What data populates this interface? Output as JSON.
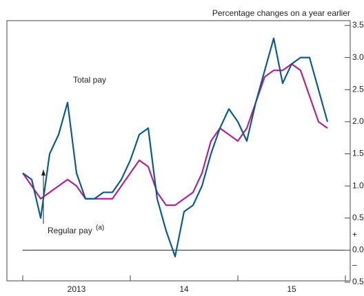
{
  "chart_data": {
    "type": "line",
    "subtitle": "Percentage changes on a year earlier",
    "categories": [
      null,
      null,
      null,
      null,
      null,
      null,
      "2013",
      null,
      null,
      null,
      null,
      null,
      null,
      null,
      null,
      null,
      null,
      null,
      "14",
      null,
      null,
      null,
      null,
      null,
      null,
      null,
      null,
      null,
      null,
      null,
      "15",
      null,
      null,
      null,
      null
    ],
    "series": [
      {
        "name": "Total pay",
        "color": "#0b5a8c",
        "values": [
          1.2,
          1.1,
          0.5,
          1.5,
          1.8,
          2.3,
          1.2,
          0.8,
          0.8,
          0.9,
          0.9,
          1.1,
          1.4,
          1.8,
          1.9,
          0.8,
          0.3,
          -0.1,
          0.6,
          0.7,
          1.0,
          1.5,
          1.9,
          2.2,
          2.0,
          1.7,
          2.3,
          2.8,
          3.3,
          2.6,
          2.9,
          3.0,
          3.0,
          2.5,
          2.0
        ]
      },
      {
        "name": "Regular pay",
        "name_sup": "(a)",
        "color": "#b0238f",
        "values": [
          1.2,
          1.0,
          0.8,
          0.9,
          1.0,
          1.1,
          1.0,
          0.8,
          0.8,
          0.8,
          0.8,
          1.0,
          1.2,
          1.4,
          1.3,
          0.9,
          0.7,
          0.7,
          0.8,
          0.9,
          1.2,
          1.7,
          1.9,
          1.8,
          1.7,
          1.9,
          2.3,
          2.7,
          2.8,
          2.8,
          2.9,
          2.8,
          2.4,
          2.0,
          1.9
        ]
      }
    ],
    "ylim": [
      -0.5,
      3.5
    ],
    "yticks": [
      {
        "value": -0.5,
        "label": "0.5"
      },
      {
        "value": 0,
        "label": "0.0"
      },
      0.5,
      {
        "value": 1,
        "label": "1.0"
      },
      1.5,
      {
        "value": 2,
        "label": "2.0"
      },
      2.5,
      {
        "value": 3,
        "label": "3.0"
      },
      3.5
    ],
    "sign_labels": [
      "+",
      "–"
    ],
    "grid": false
  }
}
